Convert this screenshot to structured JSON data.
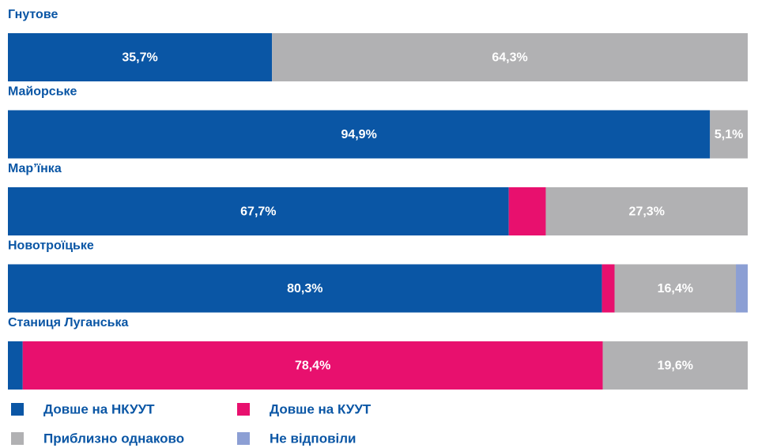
{
  "chart_data": {
    "type": "stacked-barh",
    "categories": [
      "Гнутове",
      "Майорське",
      "Мар’їнка",
      "Новотроїцьке",
      "Станиця Луганська"
    ],
    "xlim": [
      0,
      100
    ],
    "series": [
      {
        "name": "Довше на НКУУТ",
        "color": "#0a56a5",
        "values": [
          35.7,
          94.9,
          67.7,
          80.3,
          2.0
        ],
        "value_labels": [
          "35,7%",
          "94,9%",
          "67,7%",
          "80,3%",
          null
        ]
      },
      {
        "name": "Довше на КУУТ",
        "color": "#e8106e",
        "values": [
          0,
          0,
          5.0,
          1.7,
          78.4
        ],
        "value_labels": [
          null,
          null,
          null,
          null,
          "78,4%"
        ]
      },
      {
        "name": "Приблизно однаково",
        "color": "#b1b1b3",
        "values": [
          64.3,
          5.1,
          27.3,
          16.4,
          19.6
        ],
        "value_labels": [
          "64,3%",
          "5,1%",
          "27,3%",
          "16,4%",
          "19,6%"
        ]
      },
      {
        "name": "Не відповіли",
        "color": "#8c9fd4",
        "values": [
          0,
          0,
          0,
          1.6,
          0
        ],
        "value_labels": [
          null,
          null,
          null,
          null,
          null
        ]
      }
    ],
    "legend": "bottom"
  }
}
